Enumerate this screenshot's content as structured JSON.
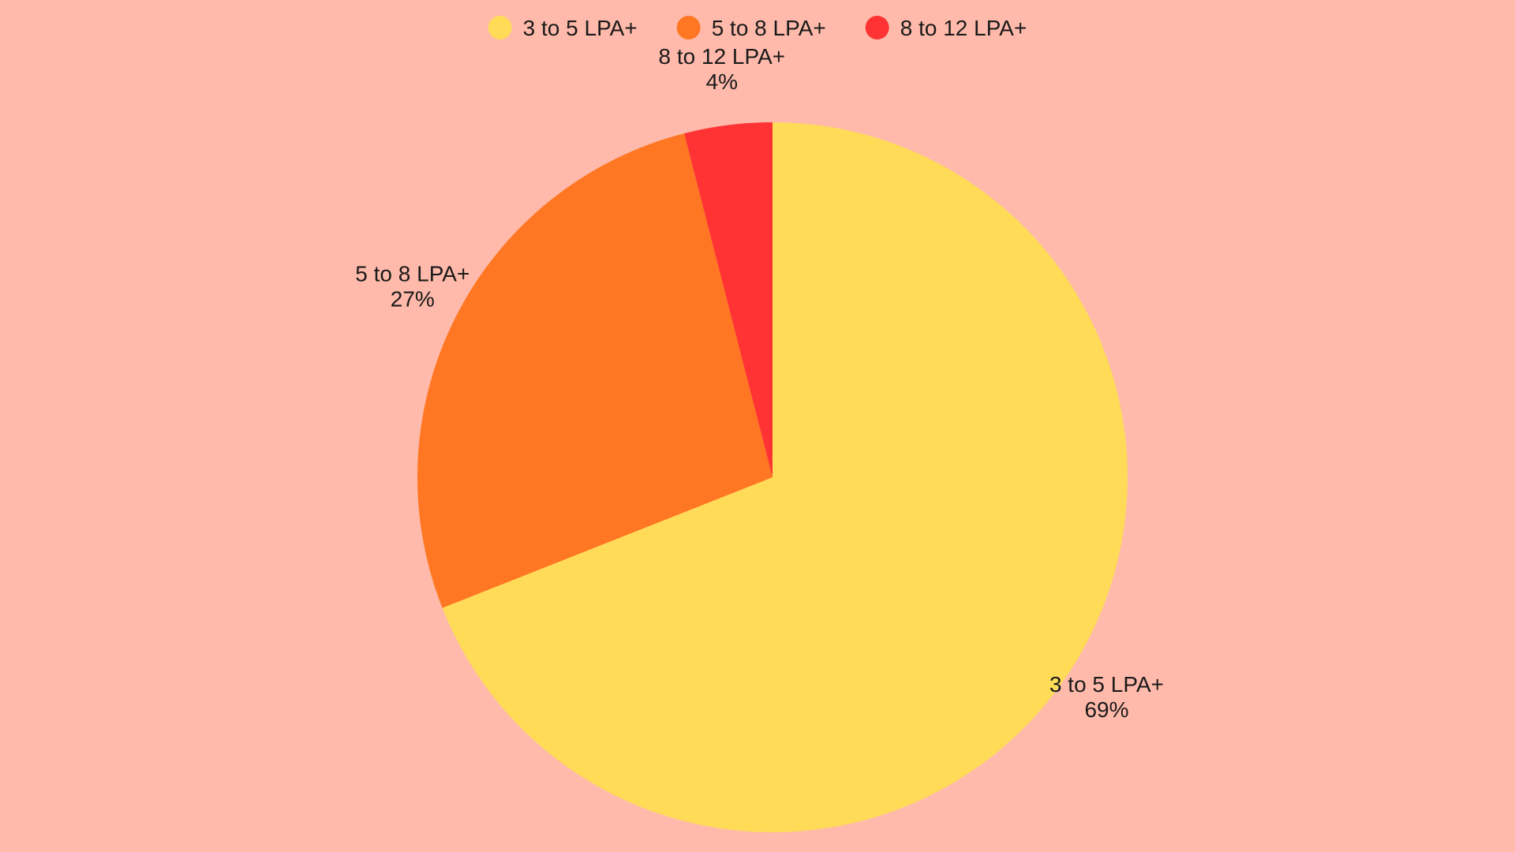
{
  "background": "#ffbaab",
  "chart_data": {
    "type": "pie",
    "title": "",
    "legend_position": "top",
    "start_angle_deg": 0,
    "direction": "clockwise",
    "series": [
      {
        "slices": [
          {
            "label": "3 to 5 LPA+",
            "value": 69,
            "display": "69%",
            "color": "#ffdb58"
          },
          {
            "label": "5 to 8 LPA+",
            "value": 27,
            "display": "27%",
            "color": "#ff7722"
          },
          {
            "label": "8 to 12 LPA+",
            "value": 4,
            "display": "4%",
            "color": "#ff3333"
          }
        ]
      }
    ]
  }
}
